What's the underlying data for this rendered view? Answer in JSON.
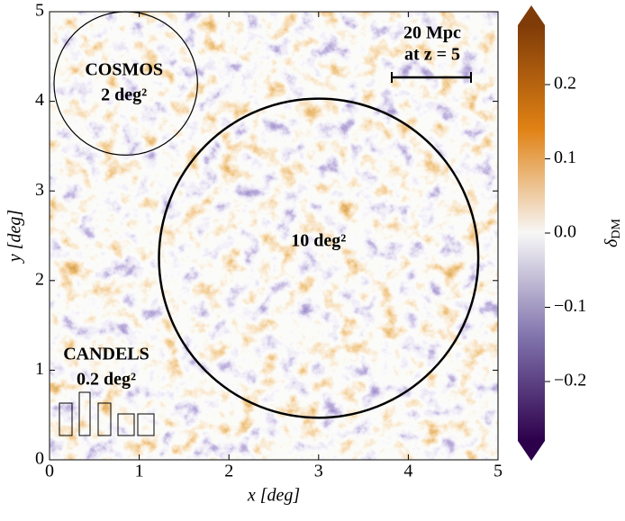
{
  "chart_data": {
    "type": "heatmap",
    "xlabel": "x [deg]",
    "ylabel": "y [deg]",
    "xlim": [
      0,
      5
    ],
    "ylim": [
      0,
      5
    ],
    "xticks": [
      0,
      1,
      2,
      3,
      4,
      5
    ],
    "yticks": [
      0,
      1,
      2,
      3,
      4,
      5
    ],
    "colorbar": {
      "label": "δ",
      "label_sub": "DM",
      "lim": [
        -0.28,
        0.28
      ],
      "ticks": [
        {
          "value": -0.2,
          "label": "−0.2"
        },
        {
          "value": -0.1,
          "label": "−0.1"
        },
        {
          "value": 0,
          "label": "0.0"
        },
        0.1,
        0.2
      ],
      "colors": [
        "#2d004b",
        "#8073ac",
        "#f7f7f7",
        "#e08214",
        "#7f3b08"
      ]
    },
    "circles": [
      {
        "labels": [
          "COSMOS",
          "2 deg²"
        ],
        "x": 0.85,
        "y": 4.2,
        "r": 0.8
      },
      {
        "labels": [
          "10 deg²"
        ],
        "x": 3.0,
        "y": 2.25,
        "r": 1.78
      }
    ],
    "candels": {
      "labels": [
        "CANDELS",
        "0.2 deg²"
      ]
    },
    "scale_bar": {
      "labels": [
        "20 Mpc",
        "at z = 5"
      ]
    }
  }
}
